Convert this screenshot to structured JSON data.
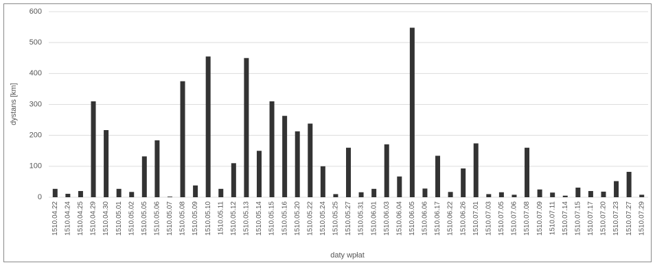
{
  "chart_data": {
    "type": "bar",
    "x_label": "daty wpłat",
    "y_label": "dystans [km]",
    "categories": [
      "1510.04.22",
      "1510.04.24",
      "1510.04.25",
      "1510.04.29",
      "1510.04.30",
      "1510.05.01",
      "1510.05.02",
      "1510.05.05",
      "1510.05.06",
      "1510.05.07",
      "1510.05.08",
      "1510.05.09",
      "1510.05.10",
      "1510.05.11",
      "1510.05.12",
      "1510.05.13",
      "1510.05.14",
      "1510.05.15",
      "1510.05.16",
      "1510.05.20",
      "1510.05.22",
      "1510.05.24",
      "1510.05.25",
      "1510.05.27",
      "1510.05.31",
      "1510.06.01",
      "1510.06.03",
      "1510.06.04",
      "1510.06.05",
      "1510.06.06",
      "1510.06.17",
      "1510.06.22",
      "1510.06.26",
      "1510.07.01",
      "1510.07.03",
      "1510.07.05",
      "1510.07.06",
      "1510.07.08",
      "1510.07.09",
      "1510.07.11",
      "1510.07.14",
      "1510.07.15",
      "1510.07.17",
      "1510.07.20",
      "1510.07.23",
      "1510.07.27",
      "1510.07.29"
    ],
    "values": [
      27,
      11,
      20,
      310,
      217,
      27,
      17,
      132,
      184,
      2,
      375,
      38,
      455,
      27,
      110,
      450,
      150,
      310,
      263,
      213,
      238,
      100,
      10,
      160,
      16,
      27,
      171,
      67,
      548,
      28,
      134,
      17,
      93,
      174,
      10,
      16,
      8,
      160,
      25,
      15,
      5,
      31,
      20,
      18,
      52,
      82,
      8
    ],
    "color": "#333333",
    "ylim": [
      0,
      600
    ],
    "yticks": [
      0,
      100,
      200,
      300,
      400,
      500,
      600
    ],
    "grid": true
  }
}
